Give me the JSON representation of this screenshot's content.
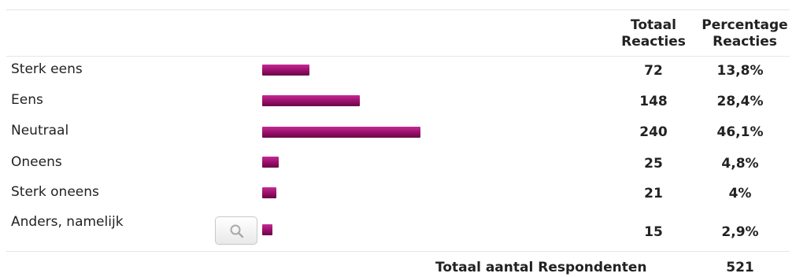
{
  "header": {
    "total_line1": "Totaal",
    "total_line2": "Reacties",
    "pct_line1": "Percentage",
    "pct_line2": "Reacties"
  },
  "chart_data": {
    "type": "bar",
    "orientation": "horizontal",
    "categories": [
      "Sterk eens",
      "Eens",
      "Neutraal",
      "Oneens",
      "Sterk oneens",
      "Anders, namelijk"
    ],
    "values": [
      72,
      148,
      240,
      25,
      21,
      15
    ],
    "percentages": [
      "13,8%",
      "28,4%",
      "46,1%",
      "4,8%",
      "4%",
      "2,9%"
    ],
    "bar_color": "#a0136f"
  },
  "footer": {
    "total_label": "Totaal aantal Respondenten",
    "total_value": "521"
  },
  "icons": {
    "search_button": "magnifier-icon"
  }
}
